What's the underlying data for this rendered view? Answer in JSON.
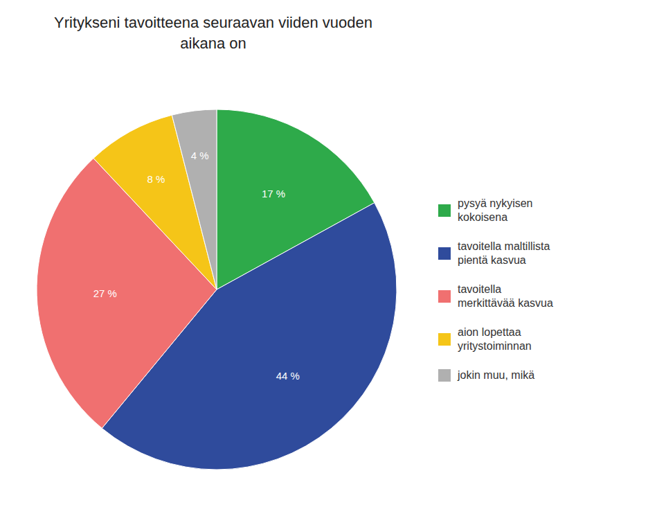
{
  "chart_data": {
    "type": "pie",
    "title": "Yritykseni tavoitteena seuraavan viiden vuoden\naikana on",
    "categories": [
      "pysyä nykyisen\nkokoisena",
      "tavoitella maltillista\npientä kasvua",
      "tavoitella\nmerkittävää kasvua",
      "aion lopettaa\nyritystoiminnan",
      "jokin muu, mikä"
    ],
    "values": [
      17,
      44,
      27,
      8,
      4
    ],
    "value_labels": [
      "17 %",
      "44 %",
      "27 %",
      "8 %",
      "4 %"
    ],
    "colors": [
      "#2eaa4a",
      "#2f4b9c",
      "#f07070",
      "#f5c518",
      "#b0b0b0"
    ],
    "data_labels": true,
    "legend": "right"
  }
}
